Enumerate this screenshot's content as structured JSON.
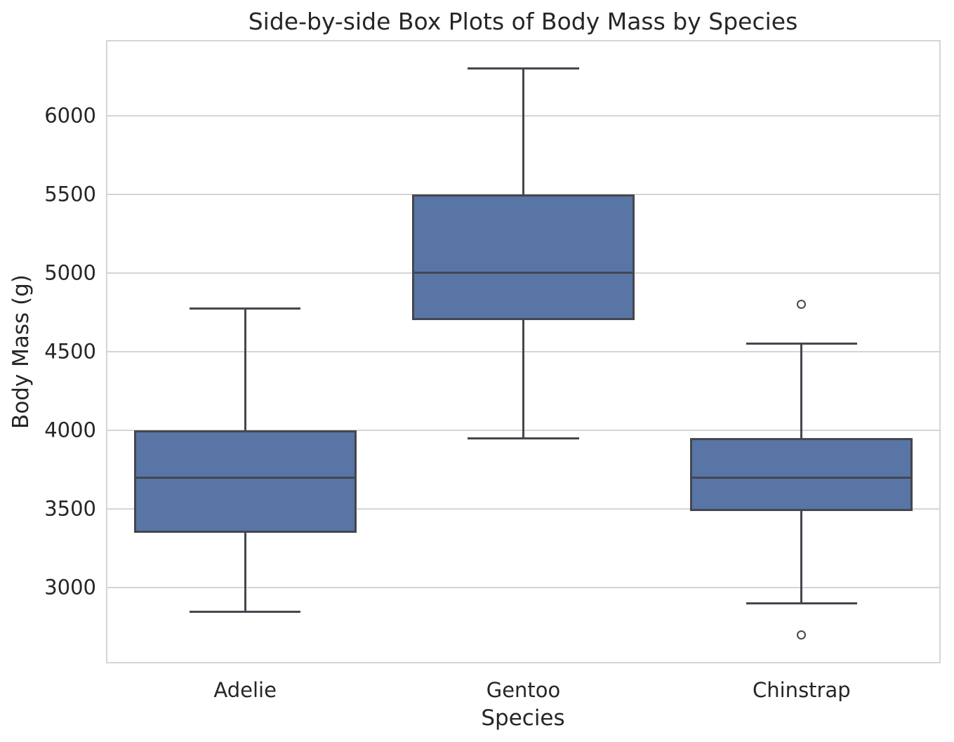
{
  "title": "Side-by-side Box Plots of Body Mass by Species",
  "colors": {
    "box_fill": "#5875A6",
    "line": "#44474E",
    "grid": "#D5D5D5",
    "text": "#262626",
    "background": "#FFFFFF"
  },
  "chart_data": {
    "type": "box",
    "title": "Side-by-side Box Plots of Body Mass by Species",
    "xlabel": "Species",
    "ylabel": "Body Mass (g)",
    "categories": [
      "Adelie",
      "Gentoo",
      "Chinstrap"
    ],
    "series": [
      {
        "name": "Adelie",
        "whisker_low": 2850,
        "q1": 3350,
        "median": 3700,
        "q3": 4000,
        "whisker_high": 4775,
        "outliers": []
      },
      {
        "name": "Gentoo",
        "whisker_low": 3950,
        "q1": 4700,
        "median": 5000,
        "q3": 5500,
        "whisker_high": 6300,
        "outliers": []
      },
      {
        "name": "Chinstrap",
        "whisker_low": 2900,
        "q1": 3487.5,
        "median": 3700,
        "q3": 3950,
        "whisker_high": 4550,
        "outliers": [
          2700,
          4800
        ]
      }
    ],
    "ylim": [
      2520,
      6480
    ],
    "yticks": [
      3000,
      3500,
      4000,
      4500,
      5000,
      5500,
      6000
    ],
    "grid": true,
    "legend": false,
    "box_width_fraction": 0.8,
    "cap_width_fraction": 0.4
  }
}
